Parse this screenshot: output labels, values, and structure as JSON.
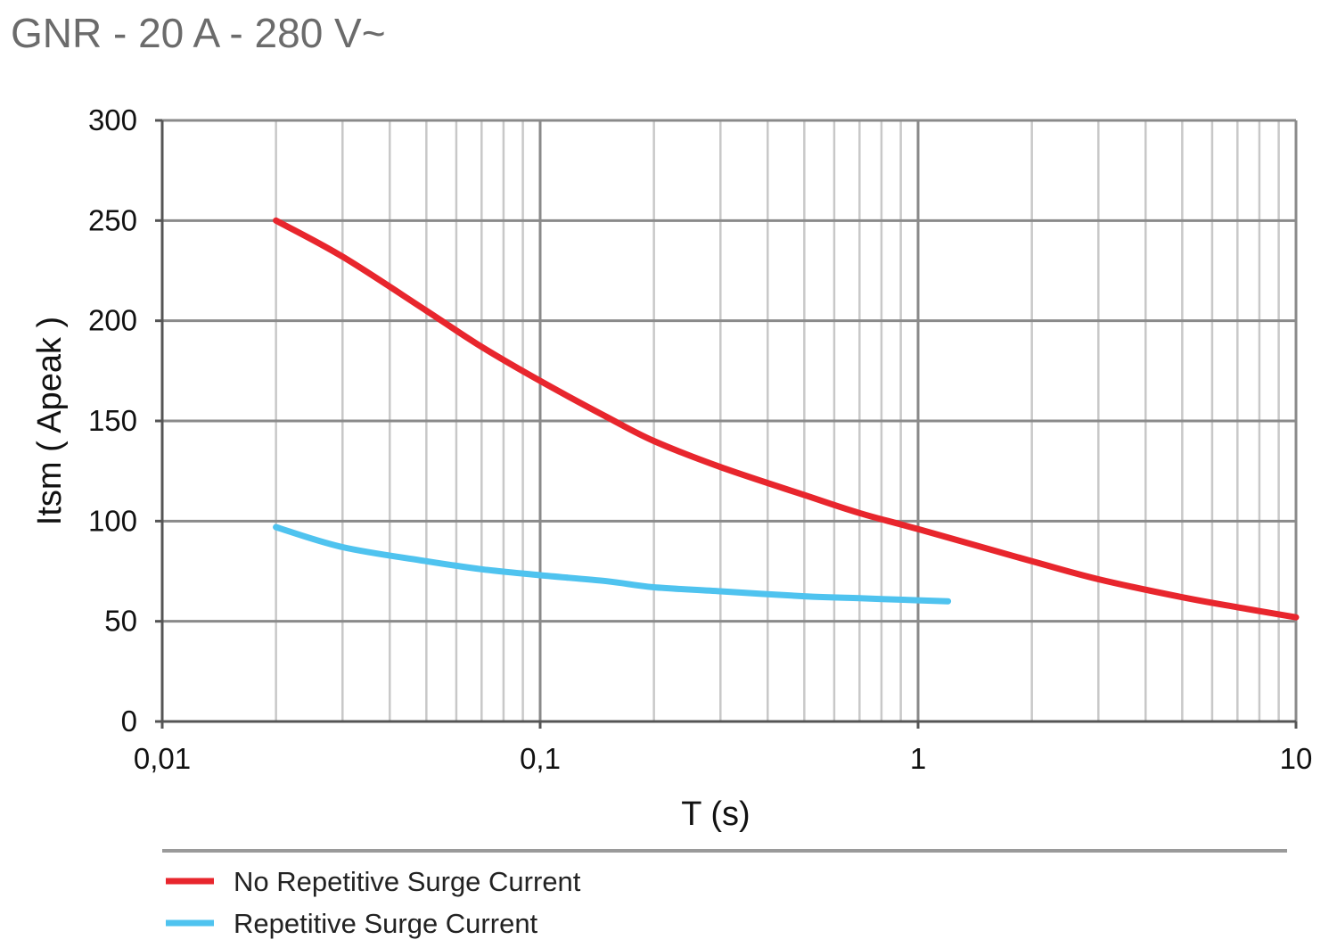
{
  "page": {
    "title": "GNR - 20 A - 280 V~"
  },
  "chart_data": {
    "type": "line",
    "xlabel": "T (s)",
    "ylabel": "Itsm ( Apeak )",
    "x_scale": "log",
    "xlim": [
      0.01,
      10
    ],
    "ylim": [
      0,
      300
    ],
    "x_ticks": [
      {
        "value": 0.01,
        "label": "0,01"
      },
      {
        "value": 0.1,
        "label": "0,1"
      },
      {
        "value": 1,
        "label": "1"
      },
      {
        "value": 10,
        "label": "10"
      }
    ],
    "y_ticks": [
      {
        "value": 0,
        "label": "0"
      },
      {
        "value": 50,
        "label": "50"
      },
      {
        "value": 100,
        "label": "100"
      },
      {
        "value": 150,
        "label": "150"
      },
      {
        "value": 200,
        "label": "200"
      },
      {
        "value": 250,
        "label": "250"
      },
      {
        "value": 300,
        "label": "300"
      }
    ],
    "grid": true,
    "legend_position": "bottom",
    "series": [
      {
        "name": "No Repetitive Surge Current",
        "color": "#e8262d",
        "x": [
          0.02,
          0.03,
          0.05,
          0.07,
          0.1,
          0.15,
          0.2,
          0.3,
          0.5,
          0.7,
          1,
          2,
          3,
          5,
          7,
          10
        ],
        "y": [
          250,
          232,
          205,
          187,
          170,
          152,
          140,
          127,
          113,
          104,
          96,
          80,
          71,
          62,
          57,
          52
        ]
      },
      {
        "name": "Repetitive Surge Current",
        "color": "#4fc3ef",
        "x": [
          0.02,
          0.03,
          0.05,
          0.07,
          0.1,
          0.15,
          0.2,
          0.3,
          0.5,
          0.7,
          1,
          1.2
        ],
        "y": [
          97,
          87,
          80,
          76,
          73,
          70,
          67,
          65,
          62.5,
          61.5,
          60.5,
          60
        ]
      }
    ]
  }
}
